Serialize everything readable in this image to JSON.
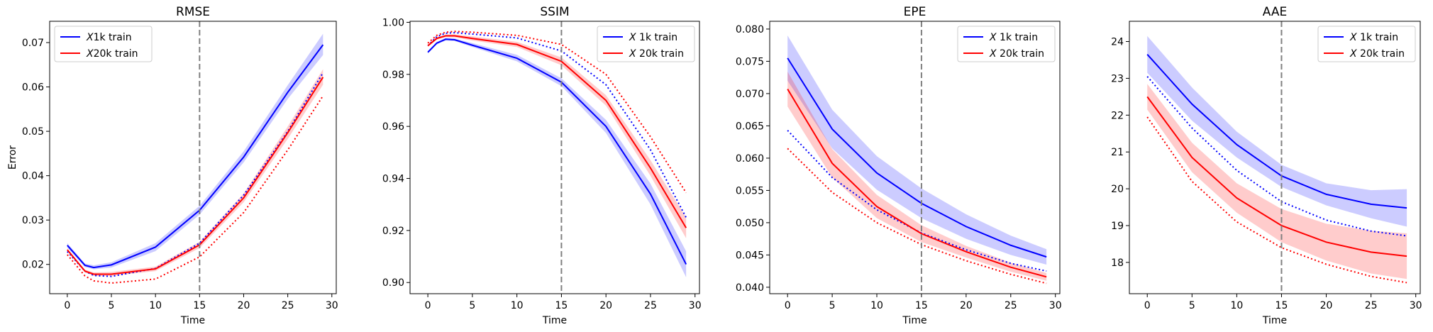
{
  "chart_data": [
    {
      "type": "line",
      "title": "RMSE",
      "xlabel": "Time",
      "ylabel": "Error",
      "xlim": [
        -2,
        30.5
      ],
      "ylim": [
        0.0134,
        0.0748
      ],
      "xticks": [
        0,
        5,
        10,
        15,
        20,
        25,
        30
      ],
      "xtick_labels": [
        "0",
        "5",
        "10",
        "15",
        "20",
        "25",
        "30"
      ],
      "yticks": [
        0.02,
        0.03,
        0.04,
        0.05,
        0.06,
        0.07
      ],
      "ytick_labels": [
        "0.02",
        "0.03",
        "0.04",
        "0.05",
        "0.06",
        "0.07"
      ],
      "vline_x": 15,
      "legend": {
        "position": "top-left",
        "entries": [
          "X1k train",
          "X20k train"
        ]
      },
      "grid": false,
      "series": [
        {
          "name": "X1k train",
          "color": "#0000ff",
          "x": [
            0,
            2,
            3,
            5,
            10,
            15,
            20,
            25,
            29
          ],
          "mean": [
            0.0243,
            0.0198,
            0.0193,
            0.0199,
            0.0239,
            0.0322,
            0.0442,
            0.0588,
            0.0695
          ],
          "lower": [
            0.0238,
            0.0194,
            0.0189,
            0.0193,
            0.023,
            0.0312,
            0.043,
            0.0573,
            0.0672
          ],
          "upper": [
            0.0248,
            0.0202,
            0.0198,
            0.0205,
            0.0248,
            0.0332,
            0.0455,
            0.0604,
            0.072
          ],
          "dotted": [
            0.0229,
            0.0185,
            0.0175,
            0.0173,
            0.0191,
            0.0248,
            0.0356,
            0.05,
            0.0632
          ]
        },
        {
          "name": "X20k train",
          "color": "#ff0000",
          "x": [
            0,
            2,
            3,
            5,
            10,
            15,
            20,
            25,
            29
          ],
          "mean": [
            0.0233,
            0.0185,
            0.0178,
            0.0178,
            0.019,
            0.0244,
            0.035,
            0.0497,
            0.0622
          ],
          "lower": [
            0.023,
            0.0182,
            0.0174,
            0.0174,
            0.0185,
            0.0237,
            0.034,
            0.0483,
            0.0605
          ],
          "upper": [
            0.0236,
            0.0188,
            0.0182,
            0.0183,
            0.0195,
            0.0251,
            0.036,
            0.0511,
            0.064
          ],
          "dotted": [
            0.0222,
            0.0174,
            0.0163,
            0.0158,
            0.0167,
            0.0217,
            0.0317,
            0.0458,
            0.058
          ]
        }
      ]
    },
    {
      "type": "line",
      "title": "SSIM",
      "xlabel": "Time",
      "ylabel": "",
      "xlim": [
        -2,
        30.5
      ],
      "ylim": [
        0.8957,
        1.0004
      ],
      "xticks": [
        0,
        5,
        10,
        15,
        20,
        25,
        30
      ],
      "xtick_labels": [
        "0",
        "5",
        "10",
        "15",
        "20",
        "25",
        "30"
      ],
      "yticks": [
        0.9,
        0.92,
        0.94,
        0.96,
        0.98,
        1.0
      ],
      "ytick_labels": [
        "0.90",
        "0.92",
        "0.94",
        "0.96",
        "0.98",
        "1.00"
      ],
      "vline_x": 15,
      "legend": {
        "position": "top-right",
        "entries": [
          "X 1k train",
          "X 20k train"
        ]
      },
      "grid": false,
      "series": [
        {
          "name": "X 1k train",
          "color": "#0000ff",
          "x": [
            0,
            1,
            2,
            3,
            5,
            10,
            15,
            20,
            25,
            29
          ],
          "mean": [
            0.9885,
            0.992,
            0.9935,
            0.9933,
            0.9912,
            0.9862,
            0.977,
            0.96,
            0.934,
            0.907
          ],
          "lower": [
            0.988,
            0.9915,
            0.993,
            0.9928,
            0.9905,
            0.985,
            0.9755,
            0.9575,
            0.93,
            0.902
          ],
          "upper": [
            0.989,
            0.9925,
            0.994,
            0.9938,
            0.992,
            0.9875,
            0.9785,
            0.9625,
            0.938,
            0.912
          ],
          "dotted": [
            0.991,
            0.9945,
            0.9958,
            0.996,
            0.9955,
            0.994,
            0.989,
            0.976,
            0.951,
            0.925
          ]
        },
        {
          "name": "X 20k train",
          "color": "#ff0000",
          "x": [
            0,
            1,
            2,
            3,
            5,
            10,
            15,
            20,
            25,
            29
          ],
          "mean": [
            0.991,
            0.9938,
            0.9948,
            0.9948,
            0.9938,
            0.9915,
            0.985,
            0.97,
            0.944,
            0.921
          ],
          "lower": [
            0.9905,
            0.9933,
            0.9943,
            0.9942,
            0.993,
            0.9905,
            0.9835,
            0.968,
            0.941,
            0.917
          ],
          "upper": [
            0.9915,
            0.9943,
            0.9953,
            0.9954,
            0.9946,
            0.9925,
            0.9865,
            0.972,
            0.947,
            0.925
          ],
          "dotted": [
            0.992,
            0.995,
            0.9962,
            0.9965,
            0.9962,
            0.995,
            0.9915,
            0.98,
            0.956,
            0.9345
          ]
        }
      ]
    },
    {
      "type": "line",
      "title": "EPE",
      "xlabel": "Time",
      "ylabel": "",
      "xlim": [
        -2,
        30.5
      ],
      "ylim": [
        0.039,
        0.0812
      ],
      "xticks": [
        0,
        5,
        10,
        15,
        20,
        25,
        30
      ],
      "xtick_labels": [
        "0",
        "5",
        "10",
        "15",
        "20",
        "25",
        "30"
      ],
      "yticks": [
        0.04,
        0.045,
        0.05,
        0.055,
        0.06,
        0.065,
        0.07,
        0.075,
        0.08
      ],
      "ytick_labels": [
        "0.040",
        "0.045",
        "0.050",
        "0.055",
        "0.060",
        "0.065",
        "0.070",
        "0.075",
        "0.080"
      ],
      "vline_x": 15,
      "legend": {
        "position": "top-right",
        "entries": [
          "X 1k train",
          "X 20k train"
        ]
      },
      "grid": false,
      "series": [
        {
          "name": "X 1k train",
          "color": "#0000ff",
          "x": [
            0,
            5,
            10,
            15,
            20,
            25,
            29
          ],
          "mean": [
            0.0755,
            0.0645,
            0.0577,
            0.053,
            0.0494,
            0.0465,
            0.0447
          ],
          "lower": [
            0.072,
            0.0615,
            0.0551,
            0.0507,
            0.0475,
            0.045,
            0.0435
          ],
          "upper": [
            0.079,
            0.0675,
            0.0603,
            0.0553,
            0.0513,
            0.048,
            0.0459
          ],
          "dotted": [
            0.0643,
            0.057,
            0.052,
            0.0484,
            0.0458,
            0.0437,
            0.0425
          ]
        },
        {
          "name": "X 20k train",
          "color": "#ff0000",
          "x": [
            0,
            5,
            10,
            15,
            20,
            25,
            29
          ],
          "mean": [
            0.0707,
            0.0592,
            0.0525,
            0.0483,
            0.0455,
            0.0431,
            0.0416
          ],
          "lower": [
            0.068,
            0.057,
            0.0507,
            0.047,
            0.0446,
            0.0424,
            0.041
          ],
          "upper": [
            0.0734,
            0.0614,
            0.0543,
            0.0496,
            0.0464,
            0.0438,
            0.0422
          ],
          "dotted": [
            0.0615,
            0.0547,
            0.05,
            0.0466,
            0.0441,
            0.042,
            0.0406
          ]
        }
      ]
    },
    {
      "type": "line",
      "title": "AAE",
      "xlabel": "Time",
      "ylabel": "",
      "xlim": [
        -2,
        30.5
      ],
      "ylim": [
        17.15,
        24.55
      ],
      "xticks": [
        0,
        5,
        10,
        15,
        20,
        25,
        30
      ],
      "xtick_labels": [
        "0",
        "5",
        "10",
        "15",
        "20",
        "25",
        "30"
      ],
      "yticks": [
        18,
        19,
        20,
        21,
        22,
        23,
        24
      ],
      "ytick_labels": [
        "18",
        "19",
        "20",
        "21",
        "22",
        "23",
        "24"
      ],
      "vline_x": 15,
      "legend": {
        "position": "top-right",
        "entries": [
          "X 1k train",
          "X 20k train"
        ]
      },
      "grid": false,
      "series": [
        {
          "name": "X 1k train",
          "color": "#0000ff",
          "x": [
            0,
            5,
            10,
            15,
            20,
            25,
            29
          ],
          "mean": [
            23.65,
            22.3,
            21.2,
            20.35,
            19.85,
            19.58,
            19.48
          ],
          "lower": [
            23.15,
            21.85,
            20.85,
            20.05,
            19.55,
            19.2,
            18.97
          ],
          "upper": [
            24.15,
            22.75,
            21.55,
            20.65,
            20.15,
            19.96,
            19.99
          ],
          "dotted": [
            23.05,
            21.65,
            20.5,
            19.65,
            19.15,
            18.85,
            18.72
          ]
        },
        {
          "name": "X 20k train",
          "color": "#ff0000",
          "x": [
            0,
            5,
            10,
            15,
            20,
            25,
            29
          ],
          "mean": [
            22.5,
            20.85,
            19.75,
            19.0,
            18.55,
            18.28,
            18.17
          ],
          "lower": [
            22.15,
            20.45,
            19.35,
            18.55,
            18.05,
            17.7,
            17.55
          ],
          "upper": [
            22.85,
            21.25,
            20.15,
            19.45,
            19.05,
            18.86,
            18.79
          ],
          "dotted": [
            21.95,
            20.2,
            19.1,
            18.4,
            17.95,
            17.62,
            17.45
          ]
        }
      ]
    }
  ]
}
